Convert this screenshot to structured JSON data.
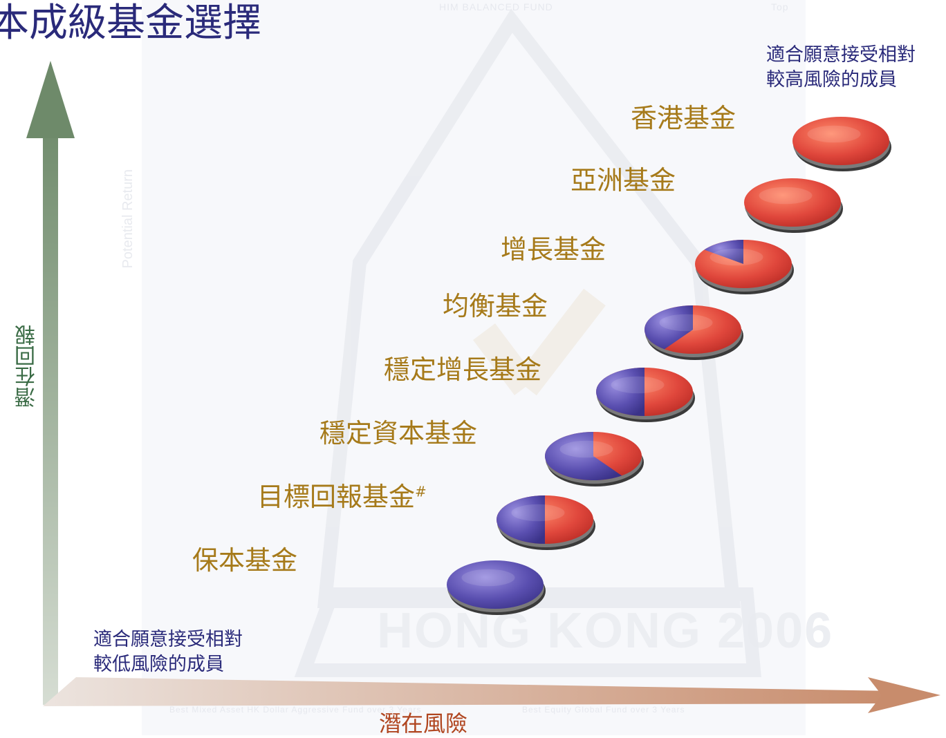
{
  "title": "本成級基金選擇",
  "axes": {
    "y_label": "潛在回報",
    "x_label": "潛在風險"
  },
  "notes": {
    "high_risk": [
      "適合願意接受相對",
      "較高風險的成員"
    ],
    "low_risk": [
      "適合願意接受相對",
      "較低風險的成員"
    ]
  },
  "funds": [
    {
      "name": "香港基金",
      "blue_fraction": 0.0
    },
    {
      "name": "亞洲基金",
      "blue_fraction": 0.0
    },
    {
      "name": "增長基金",
      "blue_fraction": 0.15
    },
    {
      "name": "均衡基金",
      "blue_fraction": 0.4
    },
    {
      "name": "穩定增長基金",
      "blue_fraction": 0.5
    },
    {
      "name": "穩定資本基金",
      "blue_fraction": 0.6
    },
    {
      "name": "目標回報基金",
      "superscript": "#",
      "blue_fraction": 0.5
    },
    {
      "name": "保本基金",
      "blue_fraction": 1.0
    }
  ],
  "watermark": {
    "top_left": "HIM BALANCED FUND",
    "top_right": "Top",
    "vertical": "Potential Return",
    "big": "HONG KONG 2006",
    "bottom_left": "Best Mixed Asset HK Dollar Aggressive Fund over 3 Years",
    "bottom_right": "Best Equity Global Fund over 3 Years"
  },
  "colors": {
    "blue": "#5a4fb0",
    "red": "#e0473c",
    "label": "#a67a1a",
    "y_arrow": "#6e8a6a",
    "x_arrow": "#c88c6c"
  }
}
